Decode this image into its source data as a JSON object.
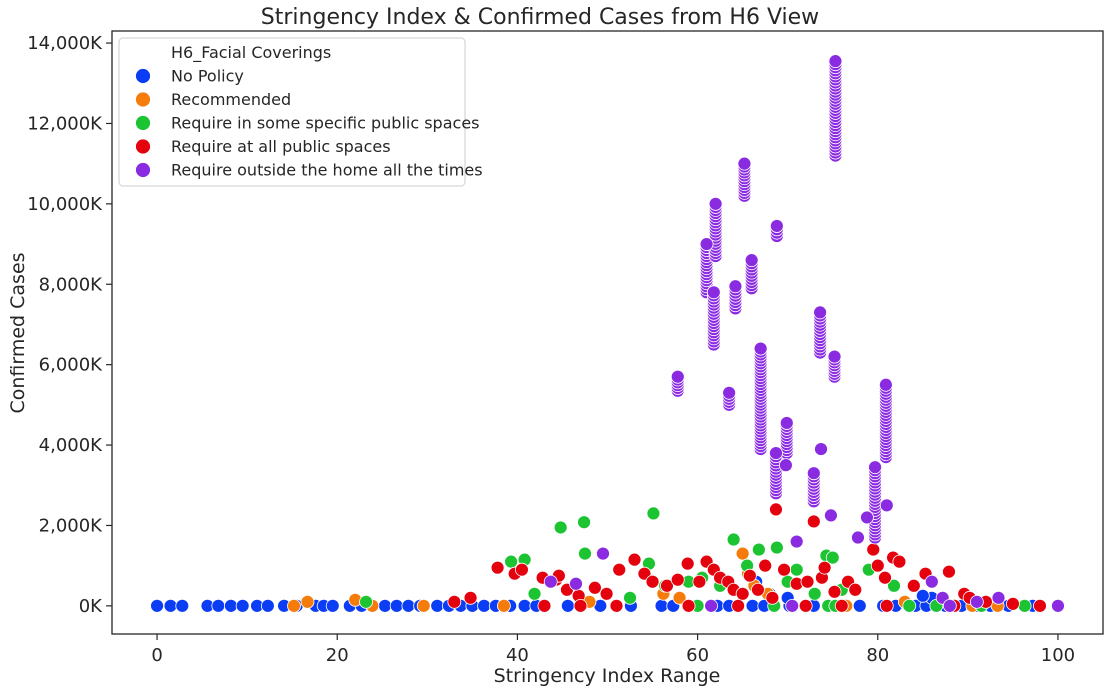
{
  "chart_data": {
    "type": "scatter",
    "title": "Stringency Index & Confirmed Cases from H6 View",
    "xlabel": "Stringency Index Range",
    "ylabel": "Confirmed Cases",
    "xlim": [
      -5,
      105
    ],
    "ylim": [
      -700000,
      14300000
    ],
    "xticks": [
      0,
      20,
      40,
      60,
      80,
      100
    ],
    "yticks": [
      0,
      2000000,
      4000000,
      6000000,
      8000000,
      10000000,
      12000000,
      14000000
    ],
    "ytick_labels": [
      "0K",
      "2,000K",
      "4,000K",
      "6,000K",
      "8,000K",
      "10,000K",
      "12,000K",
      "14,000K"
    ],
    "grid": false,
    "legend": {
      "title": "H6_Facial Coverings",
      "placement": "top-left"
    },
    "series": [
      {
        "name": "No Policy",
        "color": "#0b3df5",
        "points": [
          [
            0,
            0
          ],
          [
            1.5,
            0
          ],
          [
            2.8,
            0
          ],
          [
            5.6,
            0
          ],
          [
            6.8,
            0
          ],
          [
            8.2,
            0
          ],
          [
            9.5,
            0
          ],
          [
            11.1,
            0
          ],
          [
            12.3,
            0
          ],
          [
            14.1,
            0
          ],
          [
            15.5,
            0
          ],
          [
            17.6,
            0
          ],
          [
            18.5,
            0
          ],
          [
            19.5,
            0
          ],
          [
            21.4,
            0
          ],
          [
            22.7,
            0
          ],
          [
            24.0,
            0
          ],
          [
            25.3,
            0
          ],
          [
            26.6,
            0
          ],
          [
            27.9,
            0
          ],
          [
            29.2,
            0
          ],
          [
            31.1,
            0
          ],
          [
            32.4,
            0
          ],
          [
            33.7,
            0
          ],
          [
            35.0,
            0
          ],
          [
            36.3,
            0
          ],
          [
            37.6,
            0
          ],
          [
            39.2,
            0
          ],
          [
            40.8,
            0
          ],
          [
            42.1,
            0
          ],
          [
            45.6,
            0
          ],
          [
            49.2,
            0
          ],
          [
            52.6,
            0
          ],
          [
            56.0,
            0
          ],
          [
            57.3,
            0
          ],
          [
            59.8,
            0
          ],
          [
            62.2,
            0
          ],
          [
            63.5,
            0
          ],
          [
            66.1,
            0
          ],
          [
            67.4,
            0
          ],
          [
            70.2,
            0
          ],
          [
            72.9,
            0
          ],
          [
            75.3,
            0
          ],
          [
            78.0,
            0
          ],
          [
            80.6,
            0
          ],
          [
            82.0,
            0
          ],
          [
            84.2,
            0
          ],
          [
            85.4,
            0
          ],
          [
            87.5,
            0
          ],
          [
            89.3,
            0
          ],
          [
            91.0,
            0
          ],
          [
            92.5,
            0
          ],
          [
            94.5,
            0
          ],
          [
            96.5,
            0
          ],
          [
            97.2,
            0
          ],
          [
            66.5,
            600000
          ],
          [
            68.0,
            300000
          ],
          [
            70.0,
            200000
          ],
          [
            86.0,
            200000
          ],
          [
            85.0,
            250000
          ]
        ]
      },
      {
        "name": "Recommended",
        "color": "#f57c0b",
        "points": [
          [
            15.2,
            0
          ],
          [
            16.7,
            100000
          ],
          [
            22.0,
            150000
          ],
          [
            23.9,
            0
          ],
          [
            29.6,
            0
          ],
          [
            38.5,
            0
          ],
          [
            48.0,
            100000
          ],
          [
            56.2,
            300000
          ],
          [
            58.0,
            200000
          ],
          [
            65.0,
            1300000
          ],
          [
            65.6,
            800000
          ],
          [
            66.3,
            500000
          ],
          [
            67.8,
            300000
          ],
          [
            76.5,
            0
          ],
          [
            83.0,
            100000
          ],
          [
            90.5,
            0
          ],
          [
            93.3,
            0
          ]
        ]
      },
      {
        "name": "Require in some specific public spaces",
        "color": "#1cc432",
        "points": [
          [
            23.2,
            100000
          ],
          [
            39.3,
            1100000
          ],
          [
            40.8,
            1150000
          ],
          [
            41.9,
            300000
          ],
          [
            44.8,
            1950000
          ],
          [
            47.4,
            2080000
          ],
          [
            47.5,
            1300000
          ],
          [
            52.5,
            200000
          ],
          [
            54.6,
            1050000
          ],
          [
            55.1,
            2300000
          ],
          [
            56.4,
            500000
          ],
          [
            59.0,
            600000
          ],
          [
            60.5,
            700000
          ],
          [
            62.5,
            500000
          ],
          [
            64.0,
            1650000
          ],
          [
            65.5,
            1000000
          ],
          [
            66.8,
            1400000
          ],
          [
            68.8,
            1450000
          ],
          [
            70.0,
            600000
          ],
          [
            71.0,
            900000
          ],
          [
            73.0,
            300000
          ],
          [
            74.3,
            1250000
          ],
          [
            75.0,
            1200000
          ],
          [
            76.0,
            400000
          ],
          [
            79.0,
            900000
          ],
          [
            81.8,
            500000
          ],
          [
            83.5,
            0
          ],
          [
            86.5,
            0
          ],
          [
            91.5,
            0
          ],
          [
            96.3,
            0
          ],
          [
            60.0,
            0
          ],
          [
            68.5,
            0
          ],
          [
            74.5,
            0
          ],
          [
            75.3,
            0
          ]
        ]
      },
      {
        "name": "Require at all public spaces",
        "color": "#e5000d",
        "points": [
          [
            33.0,
            100000
          ],
          [
            34.8,
            200000
          ],
          [
            37.8,
            950000
          ],
          [
            39.7,
            800000
          ],
          [
            40.5,
            900000
          ],
          [
            42.8,
            700000
          ],
          [
            44.3,
            650000
          ],
          [
            44.6,
            750000
          ],
          [
            45.5,
            400000
          ],
          [
            46.8,
            250000
          ],
          [
            48.6,
            450000
          ],
          [
            49.9,
            300000
          ],
          [
            51.3,
            900000
          ],
          [
            53.0,
            1150000
          ],
          [
            54.1,
            800000
          ],
          [
            55.0,
            600000
          ],
          [
            56.6,
            500000
          ],
          [
            57.8,
            650000
          ],
          [
            58.9,
            1050000
          ],
          [
            60.2,
            600000
          ],
          [
            61.0,
            1100000
          ],
          [
            61.8,
            900000
          ],
          [
            62.5,
            700000
          ],
          [
            63.4,
            600000
          ],
          [
            64.0,
            400000
          ],
          [
            65.0,
            300000
          ],
          [
            65.8,
            750000
          ],
          [
            66.7,
            400000
          ],
          [
            67.5,
            1000000
          ],
          [
            68.3,
            200000
          ],
          [
            68.7,
            2400000
          ],
          [
            69.6,
            900000
          ],
          [
            71.0,
            550000
          ],
          [
            72.2,
            600000
          ],
          [
            72.9,
            2100000
          ],
          [
            73.8,
            700000
          ],
          [
            74.1,
            950000
          ],
          [
            75.2,
            350000
          ],
          [
            76.7,
            600000
          ],
          [
            77.5,
            400000
          ],
          [
            79.5,
            1400000
          ],
          [
            80.0,
            1000000
          ],
          [
            80.8,
            700000
          ],
          [
            81.7,
            1200000
          ],
          [
            82.4,
            1100000
          ],
          [
            84.0,
            500000
          ],
          [
            85.3,
            800000
          ],
          [
            87.9,
            850000
          ],
          [
            89.6,
            300000
          ],
          [
            90.2,
            200000
          ],
          [
            92.0,
            100000
          ],
          [
            95.0,
            50000
          ],
          [
            98.0,
            0
          ],
          [
            43.0,
            0
          ],
          [
            47.0,
            0
          ],
          [
            51.0,
            0
          ],
          [
            59.0,
            0
          ],
          [
            64.5,
            0
          ],
          [
            72.0,
            0
          ],
          [
            76.0,
            0
          ],
          [
            81.0,
            0
          ],
          [
            88.5,
            0
          ]
        ]
      },
      {
        "name": "Require outside the home all the times",
        "color": "#8a2be2",
        "points": [
          [
            43.7,
            600000
          ],
          [
            46.5,
            550000
          ],
          [
            49.5,
            1300000
          ],
          [
            57.8,
            5700000
          ],
          [
            61.0,
            9000000
          ],
          [
            61.8,
            7800000
          ],
          [
            62.0,
            10000000
          ],
          [
            63.5,
            5300000
          ],
          [
            64.2,
            7950000
          ],
          [
            65.2,
            11000000
          ],
          [
            66.0,
            8600000
          ],
          [
            67.0,
            6400000
          ],
          [
            68.8,
            9450000
          ],
          [
            68.7,
            3800000
          ],
          [
            69.9,
            4550000
          ],
          [
            69.8,
            3500000
          ],
          [
            71.0,
            1600000
          ],
          [
            72.9,
            3300000
          ],
          [
            73.6,
            7300000
          ],
          [
            73.7,
            3900000
          ],
          [
            75.3,
            13550000
          ],
          [
            75.2,
            6200000
          ],
          [
            74.8,
            2250000
          ],
          [
            77.8,
            1700000
          ],
          [
            78.8,
            2200000
          ],
          [
            79.7,
            3450000
          ],
          [
            80.9,
            5500000
          ],
          [
            81.0,
            2500000
          ],
          [
            86.0,
            600000
          ],
          [
            87.2,
            200000
          ],
          [
            91.0,
            100000
          ],
          [
            93.4,
            200000
          ],
          [
            100,
            0
          ],
          [
            88.0,
            0
          ],
          [
            61.5,
            0
          ],
          [
            70.5,
            0
          ]
        ],
        "columns": [
          {
            "x": 57.8,
            "y_from": 5350000,
            "y_to": 5700000
          },
          {
            "x": 61.0,
            "y_from": 7800000,
            "y_to": 9000000
          },
          {
            "x": 61.8,
            "y_from": 6500000,
            "y_to": 7800000
          },
          {
            "x": 62.0,
            "y_from": 8700000,
            "y_to": 10000000
          },
          {
            "x": 63.5,
            "y_from": 5000000,
            "y_to": 5300000
          },
          {
            "x": 64.2,
            "y_from": 7400000,
            "y_to": 7950000
          },
          {
            "x": 65.2,
            "y_from": 10200000,
            "y_to": 11000000
          },
          {
            "x": 66.0,
            "y_from": 7900000,
            "y_to": 8600000
          },
          {
            "x": 67.0,
            "y_from": 3900000,
            "y_to": 6400000
          },
          {
            "x": 68.7,
            "y_from": 2800000,
            "y_to": 3800000
          },
          {
            "x": 68.8,
            "y_from": 9200000,
            "y_to": 9450000
          },
          {
            "x": 69.9,
            "y_from": 3800000,
            "y_to": 4550000
          },
          {
            "x": 72.9,
            "y_from": 2600000,
            "y_to": 3300000
          },
          {
            "x": 73.6,
            "y_from": 6300000,
            "y_to": 7300000
          },
          {
            "x": 75.3,
            "y_from": 11200000,
            "y_to": 13550000
          },
          {
            "x": 75.2,
            "y_from": 5700000,
            "y_to": 6200000
          },
          {
            "x": 79.7,
            "y_from": 1700000,
            "y_to": 3450000
          },
          {
            "x": 80.9,
            "y_from": 3700000,
            "y_to": 5500000
          }
        ]
      }
    ]
  }
}
